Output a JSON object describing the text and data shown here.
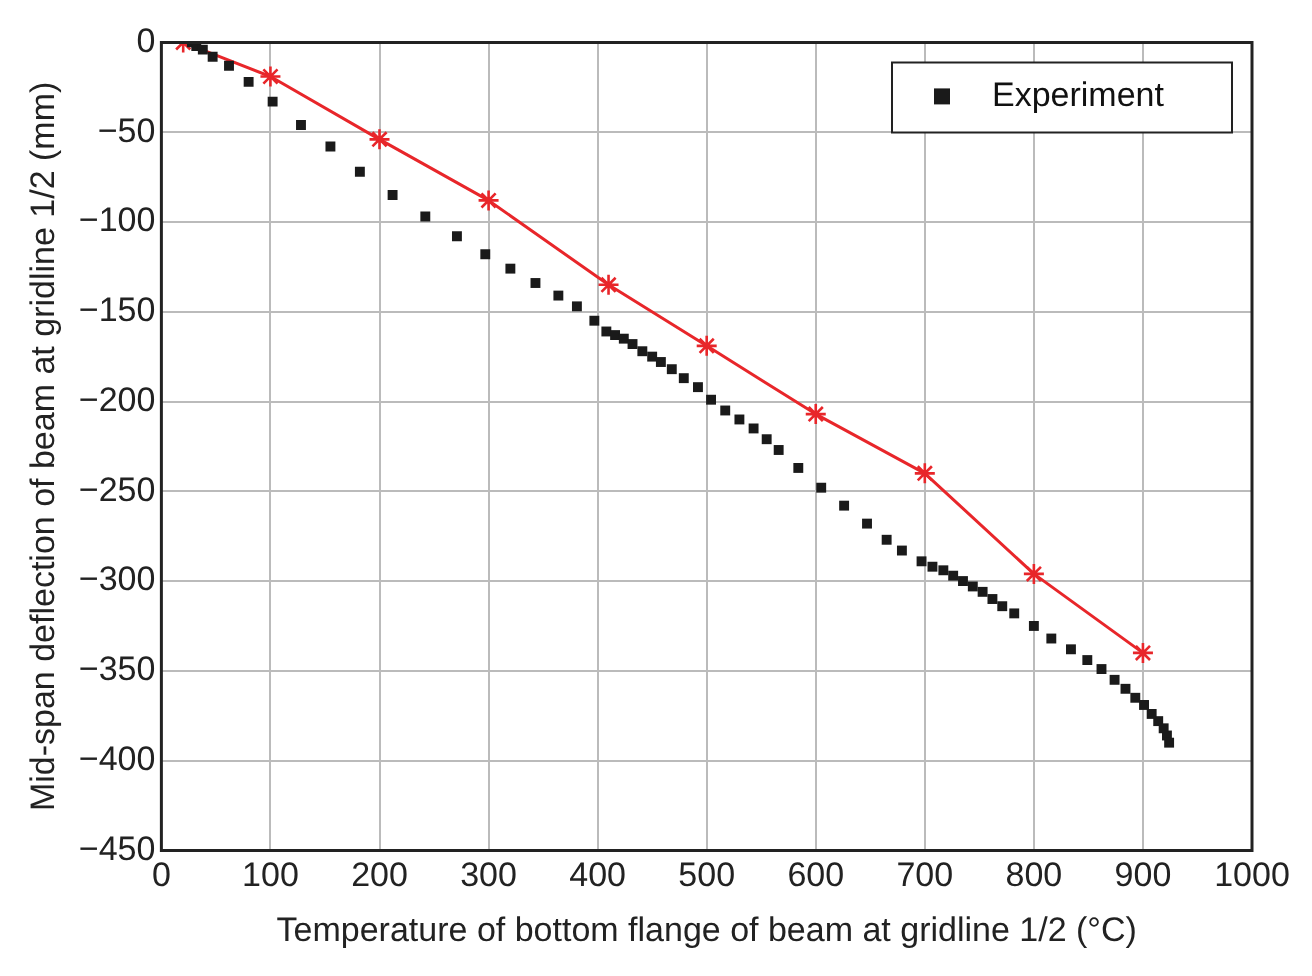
{
  "chart_data": {
    "type": "scatter",
    "xlabel": "Temperature of bottom flange of beam at gridline 1/2 (°C)",
    "ylabel": "Mid-span deflection of beam at gridline 1/2 (mm)",
    "xlim": [
      0,
      1000
    ],
    "xticks": [
      0,
      100,
      200,
      300,
      400,
      500,
      600,
      700,
      800,
      900,
      1000
    ],
    "ylim": [
      -450,
      0
    ],
    "yticks": [
      {
        "value": -450,
        "label": "−450"
      },
      {
        "value": -400,
        "label": "−400"
      },
      {
        "value": -350,
        "label": "−350"
      },
      {
        "value": -300,
        "label": "−300"
      },
      {
        "value": -250,
        "label": "−250"
      },
      {
        "value": -200,
        "label": "−200"
      },
      {
        "value": -150,
        "label": "−150"
      },
      {
        "value": -100,
        "label": "−100"
      },
      {
        "value": -50,
        "label": "−50"
      },
      0
    ],
    "grid": true,
    "legend": "top right",
    "series": [
      {
        "name": "Experiment",
        "marker": "square",
        "color": "#1a1a1a",
        "x": [
          28,
          32,
          38,
          47,
          62,
          80,
          102,
          128,
          155,
          182,
          212,
          242,
          271,
          297,
          320,
          343,
          364,
          381,
          397,
          408,
          416,
          424,
          432,
          441,
          450,
          458,
          468,
          479,
          492,
          504,
          517,
          530,
          543,
          555,
          566,
          584,
          605,
          626,
          647,
          665,
          679,
          697,
          707,
          717,
          726,
          735,
          744,
          753,
          762,
          771,
          782,
          800,
          816,
          834,
          849,
          862,
          874,
          884,
          893,
          901,
          908,
          914,
          919,
          922,
          924
        ],
        "values": [
          0,
          -2,
          -4,
          -8,
          -13,
          -22,
          -33,
          -46,
          -58,
          -72,
          -85,
          -97,
          -108,
          -118,
          -126,
          -134,
          -141,
          -147,
          -155,
          -161,
          -163,
          -165,
          -168,
          -172,
          -175,
          -178,
          -182,
          -187,
          -192,
          -199,
          -205,
          -210,
          -215,
          -221,
          -227,
          -237,
          -248,
          -258,
          -268,
          -277,
          -283,
          -289,
          -292,
          -294,
          -297,
          -300,
          -303,
          -306,
          -310,
          -314,
          -318,
          -325,
          -332,
          -338,
          -344,
          -349,
          -355,
          -360,
          -365,
          -369,
          -374,
          -378,
          -382,
          -386,
          -390
        ]
      },
      {
        "type": "line",
        "marker": "cross",
        "line_style": "solid",
        "color": "#e8262a",
        "x": [
          20,
          100,
          200,
          300,
          410,
          500,
          600,
          700,
          800,
          900
        ],
        "values": [
          0,
          -19,
          -54,
          -88,
          -135,
          -169,
          -207,
          -240,
          -296,
          -340
        ]
      }
    ]
  }
}
